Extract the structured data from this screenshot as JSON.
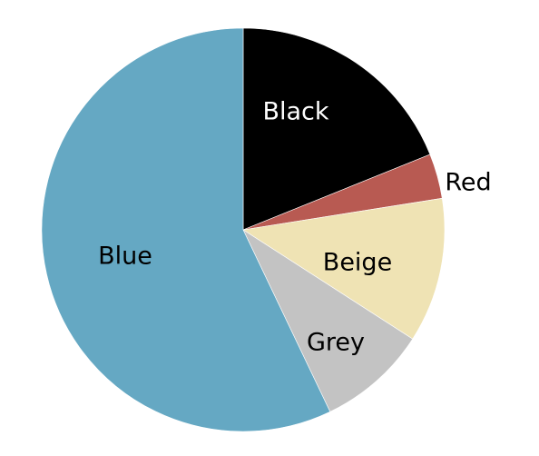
{
  "chart_data": {
    "type": "pie",
    "title": "",
    "start_angle_deg": 0,
    "direction": "clockwise",
    "slices": [
      {
        "label": "Black",
        "value": 18.9,
        "color": "#000000",
        "label_color": "#ffffff"
      },
      {
        "label": "Red",
        "value": 3.6,
        "color": "#b85a52",
        "label_color": "#000000"
      },
      {
        "label": "Beige",
        "value": 11.6,
        "color": "#efe3b4",
        "label_color": "#000000"
      },
      {
        "label": "Grey",
        "value": 8.8,
        "color": "#c3c3c3",
        "label_color": "#000000"
      },
      {
        "label": "Blue",
        "value": 57.1,
        "color": "#65a8c3",
        "label_color": "#000000"
      }
    ]
  }
}
